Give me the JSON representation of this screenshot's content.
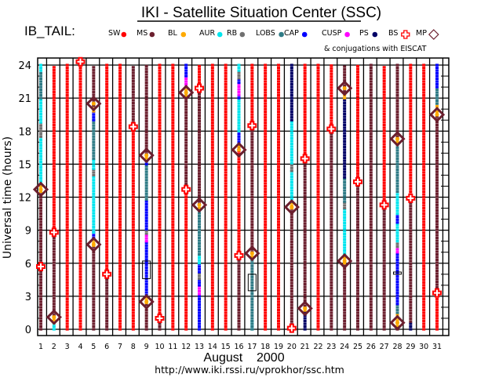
{
  "header": {
    "title": "IKI - Satellite Situation Center (SSC)",
    "satellite": "IB_TAIL:",
    "conjugation_note": "& conjugations with EISCAT",
    "url": "http://www.iki.rssi.ru/vprokhor/ssc.htm"
  },
  "chart_data": {
    "type": "scatter",
    "title": "IKI - Satellite Situation Center (SSC)",
    "xlabel": "August    2000",
    "ylabel": "Universal time (hours)",
    "xlim": [
      1,
      31
    ],
    "ylim": [
      0,
      24
    ],
    "grid": true,
    "legend_position": "top",
    "categories": [
      "1",
      "2",
      "3",
      "4",
      "5",
      "6",
      "7",
      "8",
      "9",
      "10",
      "11",
      "12",
      "13",
      "14",
      "15",
      "16",
      "17",
      "18",
      "19",
      "20",
      "21",
      "22",
      "23",
      "24",
      "25",
      "26",
      "27",
      "28",
      "29",
      "30",
      "31"
    ],
    "yticks": [
      "0",
      "3",
      "6",
      "9",
      "12",
      "15",
      "18",
      "21",
      "24"
    ],
    "legend": [
      {
        "key": "SW",
        "label": "SW",
        "color": "#ff0000",
        "marker": "dot"
      },
      {
        "key": "MS",
        "label": "MS",
        "color": "#6b1f2e",
        "marker": "dot"
      },
      {
        "key": "BL",
        "label": "BL",
        "color": "#ffaa00",
        "marker": "dot"
      },
      {
        "key": "AUR",
        "label": "AUR",
        "color": "#00e5ee",
        "marker": "dot"
      },
      {
        "key": "RB",
        "label": "RB",
        "color": "#707070",
        "marker": "dot"
      },
      {
        "key": "LOBS",
        "label": "LOBS",
        "color": "#2f7b86",
        "marker": "dot"
      },
      {
        "key": "CAP",
        "label": "CAP",
        "color": "#0000ff",
        "marker": "dot"
      },
      {
        "key": "CUSP",
        "label": "CUSP",
        "color": "#ff00ff",
        "marker": "dot"
      },
      {
        "key": "PS",
        "label": "PS",
        "color": "#000066",
        "marker": "dot"
      },
      {
        "key": "BS",
        "label": "BS",
        "color": "#ff0000",
        "marker": "cross"
      },
      {
        "key": "MP",
        "label": "MP",
        "color": "#6b1f2e",
        "marker": "diamond"
      }
    ],
    "legend_order_text": [
      "SW",
      "MS",
      "BL",
      "AUR",
      "RB",
      "LOBS",
      "CAP",
      "CUSP",
      "PS",
      "BS",
      "MP"
    ],
    "days": [
      {
        "day": 1,
        "segments": [
          [
            "MS",
            0,
            12.5
          ],
          [
            "BL",
            12.5,
            13.2
          ],
          [
            "AUR",
            13.2,
            17.5
          ],
          [
            "RB",
            17.5,
            18.8
          ],
          [
            "AUR",
            18.8,
            21
          ],
          [
            "LOBS",
            21,
            23.5
          ],
          [
            "AUR",
            23.5,
            24
          ]
        ],
        "mp": [
          12.7
        ],
        "bs": [
          5.7
        ]
      },
      {
        "day": 2,
        "segments": [
          [
            "AUR",
            0,
            0.6
          ],
          [
            "BL",
            0.6,
            1.3
          ],
          [
            "MS",
            1.3,
            8.8
          ],
          [
            "SW",
            8.8,
            24
          ]
        ],
        "mp": [
          1.1
        ],
        "bs": [
          8.8
        ]
      },
      {
        "day": 3,
        "segments": [
          [
            "SW",
            0,
            24
          ]
        ],
        "mp": [],
        "bs": []
      },
      {
        "day": 4,
        "segments": [
          [
            "SW",
            0,
            24
          ]
        ],
        "mp": [],
        "bs": [
          24.3
        ]
      },
      {
        "day": 5,
        "segments": [
          [
            "MS",
            0,
            7.6
          ],
          [
            "BL",
            7.6,
            8.3
          ],
          [
            "CAP",
            8.3,
            8.8
          ],
          [
            "AUR",
            8.8,
            14
          ],
          [
            "RB",
            14,
            14.6
          ],
          [
            "AUR",
            14.6,
            15.5
          ],
          [
            "LOBS",
            15.5,
            19
          ],
          [
            "CAP",
            19,
            19.8
          ],
          [
            "BL",
            19.8,
            20.3
          ],
          [
            "MS",
            20.3,
            24
          ]
        ],
        "mp": [
          7.7,
          20.5
        ],
        "bs": []
      },
      {
        "day": 6,
        "segments": [
          [
            "MS",
            0,
            5
          ],
          [
            "SW",
            5,
            24
          ]
        ],
        "mp": [],
        "bs": [
          5
        ]
      },
      {
        "day": 7,
        "segments": [
          [
            "SW",
            0,
            24
          ]
        ],
        "mp": [],
        "bs": []
      },
      {
        "day": 8,
        "segments": [
          [
            "SW",
            0,
            18.3
          ],
          [
            "MS",
            18.3,
            24
          ]
        ],
        "mp": [],
        "bs": [
          18.4
        ]
      },
      {
        "day": 9,
        "segments": [
          [
            "MS",
            0,
            2.4
          ],
          [
            "BL",
            2.4,
            3.1
          ],
          [
            "CAP",
            3.1,
            8
          ],
          [
            "CUSP",
            8,
            8.7
          ],
          [
            "RB",
            8.7,
            9.1
          ],
          [
            "CAP",
            9.1,
            11.8
          ],
          [
            "LOBS",
            11.8,
            15
          ],
          [
            "CAP",
            15,
            15.3
          ],
          [
            "BL",
            15.3,
            15.9
          ],
          [
            "MS",
            15.9,
            24
          ]
        ],
        "mp": [
          2.5,
          15.8
        ],
        "bs": []
      },
      {
        "day": 10,
        "segments": [
          [
            "MS",
            0,
            1.0
          ],
          [
            "SW",
            1.0,
            24
          ]
        ],
        "mp": [],
        "bs": [
          1.0
        ]
      },
      {
        "day": 11,
        "segments": [
          [
            "SW",
            0,
            24
          ]
        ],
        "mp": [],
        "bs": []
      },
      {
        "day": 12,
        "segments": [
          [
            "SW",
            0,
            12.7
          ],
          [
            "MS",
            12.7,
            21.2
          ],
          [
            "BL",
            21.2,
            22
          ],
          [
            "CUSP",
            22,
            23
          ],
          [
            "CAP",
            23,
            24
          ]
        ],
        "mp": [
          21.5
        ],
        "bs": [
          12.7
        ]
      },
      {
        "day": 13,
        "segments": [
          [
            "CAP",
            0,
            3.2
          ],
          [
            "CUSP",
            3.2,
            4.0
          ],
          [
            "CAP",
            4.0,
            4.6
          ],
          [
            "RB",
            4.6,
            5.2
          ],
          [
            "CAP",
            5.2,
            6
          ],
          [
            "AUR",
            6,
            6.8
          ],
          [
            "LOBS",
            6.8,
            11
          ],
          [
            "BL",
            11,
            11.4
          ],
          [
            "MS",
            11.4,
            21.9
          ],
          [
            "SW",
            21.9,
            24
          ]
        ],
        "mp": [
          11.3
        ],
        "bs": [
          21.9
        ]
      },
      {
        "day": 14,
        "segments": [
          [
            "SW",
            0,
            24
          ]
        ],
        "mp": [],
        "bs": []
      },
      {
        "day": 15,
        "segments": [
          [
            "SW",
            0,
            24
          ]
        ],
        "mp": [],
        "bs": []
      },
      {
        "day": 16,
        "segments": [
          [
            "MS",
            0,
            6.7
          ],
          [
            "SW",
            6.7,
            16.3
          ],
          [
            "MS",
            16.3,
            16.6
          ],
          [
            "BL",
            16.6,
            17
          ],
          [
            "CAP",
            17,
            18
          ],
          [
            "AUR",
            18,
            21
          ],
          [
            "CAP",
            21,
            21.3
          ],
          [
            "CUSP",
            21.3,
            22.4
          ],
          [
            "CAP",
            22.4,
            22.8
          ],
          [
            "RB",
            22.8,
            23.5
          ],
          [
            "AUR",
            23.5,
            24
          ]
        ],
        "mp": [
          16.3
        ],
        "bs": [
          6.7
        ]
      },
      {
        "day": 17,
        "segments": [
          [
            "AUR",
            0,
            0.8
          ],
          [
            "LOBS",
            0,
            6.6
          ],
          [
            "BL",
            6.6,
            7
          ],
          [
            "MS",
            7,
            18.5
          ],
          [
            "SW",
            18.5,
            24
          ]
        ],
        "mp": [
          6.9
        ],
        "bs": [
          18.5
        ]
      },
      {
        "day": 18,
        "segments": [
          [
            "SW",
            0,
            24
          ]
        ],
        "mp": [],
        "bs": []
      },
      {
        "day": 19,
        "segments": [
          [
            "SW",
            0,
            24
          ]
        ],
        "mp": [],
        "bs": []
      },
      {
        "day": 20,
        "segments": [
          [
            "SW",
            0,
            0.2
          ],
          [
            "MS",
            0.2,
            11
          ],
          [
            "BL",
            11,
            11.6
          ],
          [
            "AUR",
            11.6,
            14.4
          ],
          [
            "RB",
            14.4,
            15.1
          ],
          [
            "AUR",
            15.1,
            19
          ],
          [
            "PS",
            19,
            24
          ]
        ],
        "mp": [
          11.1
        ],
        "bs": [
          0.1
        ]
      },
      {
        "day": 21,
        "segments": [
          [
            "PS",
            0,
            1.7
          ],
          [
            "BL",
            1.7,
            2.1
          ],
          [
            "MS",
            2.1,
            15.5
          ],
          [
            "SW",
            15.5,
            24
          ]
        ],
        "mp": [
          1.9
        ],
        "bs": [
          15.5
        ]
      },
      {
        "day": 22,
        "segments": [
          [
            "SW",
            0,
            24
          ]
        ],
        "mp": [],
        "bs": []
      },
      {
        "day": 23,
        "segments": [
          [
            "MS",
            0,
            18.2
          ],
          [
            "SW",
            18.2,
            24
          ]
        ],
        "mp": [],
        "bs": [
          18.2
        ]
      },
      {
        "day": 24,
        "segments": [
          [
            "MS",
            0,
            6
          ],
          [
            "BL",
            6,
            6.9
          ],
          [
            "AUR",
            6.9,
            11
          ],
          [
            "RB",
            11,
            11.6
          ],
          [
            "LOBS",
            11.6,
            13.8
          ],
          [
            "PS",
            13.8,
            21
          ],
          [
            "BL",
            21,
            21.6
          ],
          [
            "MS",
            21.6,
            24
          ]
        ],
        "mp": [
          6.2,
          21.9
        ],
        "bs": []
      },
      {
        "day": 25,
        "segments": [
          [
            "MS",
            0,
            13.4
          ],
          [
            "SW",
            13.4,
            24
          ]
        ],
        "mp": [],
        "bs": [
          13.4
        ]
      },
      {
        "day": 26,
        "segments": [
          [
            "MS",
            0,
            24
          ]
        ],
        "mp": [],
        "bs": []
      },
      {
        "day": 27,
        "segments": [
          [
            "MS",
            0,
            11.3
          ],
          [
            "SW",
            11.3,
            24
          ]
        ],
        "mp": [],
        "bs": [
          11.3
        ]
      },
      {
        "day": 28,
        "segments": [
          [
            "MS",
            0,
            0.3
          ],
          [
            "BL",
            0.3,
            1.5
          ],
          [
            "LOBS",
            1.5,
            2.3
          ],
          [
            "CAP",
            2.3,
            7
          ],
          [
            "CUSP",
            7,
            7.5
          ],
          [
            "RB",
            7.5,
            8
          ],
          [
            "AUR",
            8,
            9.7
          ],
          [
            "CAP",
            9.7,
            10.5
          ],
          [
            "AUR",
            10.5,
            12.5
          ],
          [
            "LOBS",
            12.5,
            17
          ],
          [
            "BL",
            17,
            17.5
          ],
          [
            "MS",
            17.5,
            24
          ]
        ],
        "mp": [
          0.6,
          17.3
        ],
        "bs": []
      },
      {
        "day": 29,
        "segments": [
          [
            "PS",
            0,
            0.7
          ],
          [
            "MS",
            0.7,
            12
          ],
          [
            "SW",
            12,
            24
          ]
        ],
        "mp": [],
        "bs": [
          11.9
        ]
      },
      {
        "day": 30,
        "segments": [
          [
            "SW",
            0,
            24
          ]
        ],
        "mp": [],
        "bs": []
      },
      {
        "day": 31,
        "segments": [
          [
            "SW",
            0,
            3.3
          ],
          [
            "MS",
            3.3,
            19.5
          ],
          [
            "BL",
            19.5,
            20.5
          ],
          [
            "LOBS",
            20.5,
            22
          ],
          [
            "CAP",
            22,
            24
          ]
        ],
        "mp": [
          19.5
        ],
        "bs": [
          3.3
        ]
      }
    ],
    "eiscat_boxes": [
      {
        "day": 9,
        "from": 4.6,
        "to": 6.2
      },
      {
        "day": 17,
        "from": 3.5,
        "to": 5.0
      },
      {
        "day": 28,
        "from": 5.0,
        "to": 5.2
      }
    ]
  }
}
